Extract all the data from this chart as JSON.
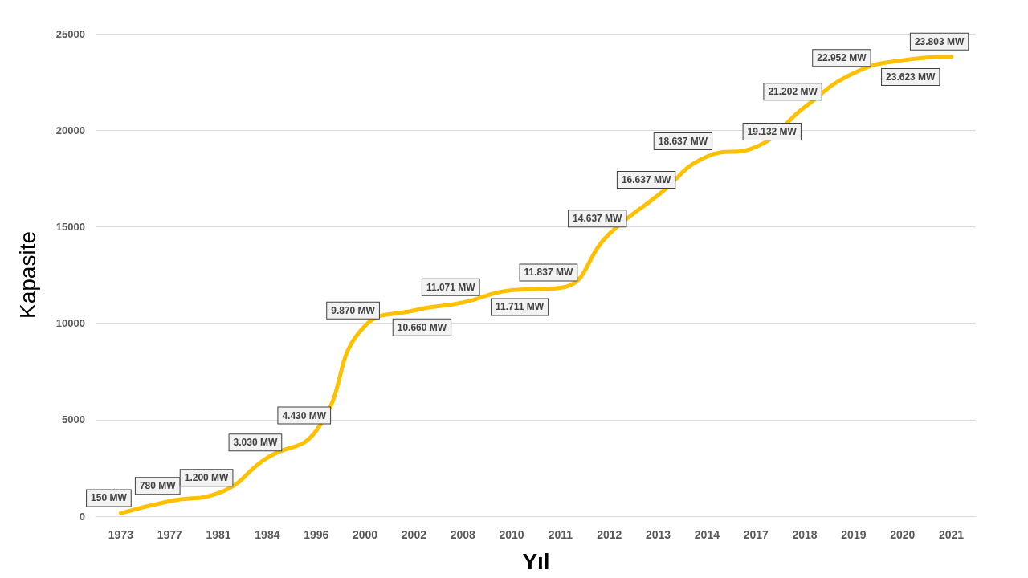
{
  "chart_data": {
    "type": "line",
    "xlabel": "Yıl",
    "ylabel": "Kapasite",
    "categories": [
      "1973",
      "1977",
      "1981",
      "1984",
      "1996",
      "2000",
      "2002",
      "2008",
      "2010",
      "2011",
      "2012",
      "2013",
      "2014",
      "2017",
      "2018",
      "2019",
      "2020",
      "2021"
    ],
    "series": [
      {
        "color": "#ffc000",
        "values": [
          150,
          780,
          1200,
          3030,
          4430,
          9870,
          10660,
          11071,
          11711,
          11837,
          14637,
          16637,
          18637,
          19132,
          21202,
          22952,
          23623,
          23803
        ],
        "value_labels": [
          "150 MW",
          "780 MW",
          "1.200 MW",
          "3.030 MW",
          "4.430 MW",
          "9.870 MW",
          "10.660 MW",
          "11.071 MW",
          "11.711 MW",
          "11.837 MW",
          "14.637 MW",
          "16.637 MW",
          "18.637 MW",
          "19.132 MW",
          "21.202 MW",
          "22.952 MW",
          "23.623 MW",
          "23.803 MW"
        ]
      }
    ],
    "ylim": [
      0,
      25000
    ],
    "yticks": [
      0,
      5000,
      10000,
      15000,
      20000,
      25000
    ],
    "grid": "y",
    "marker": "none",
    "line_style": "solid"
  }
}
